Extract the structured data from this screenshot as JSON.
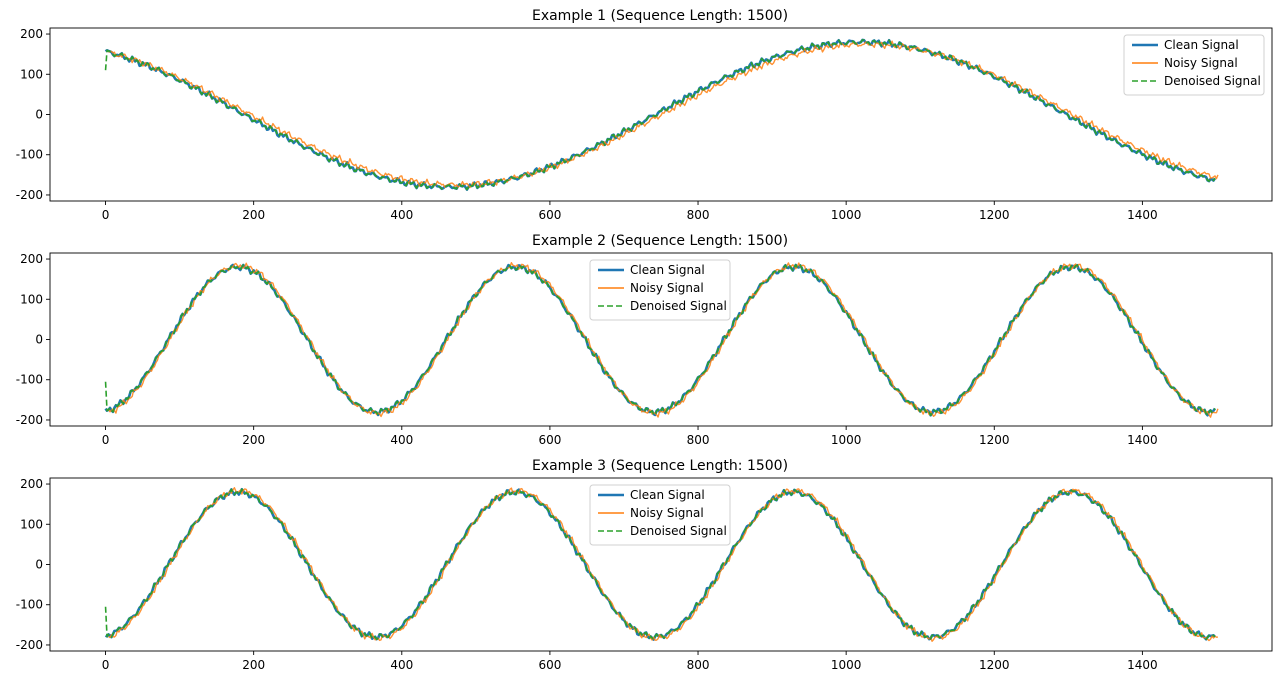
{
  "chart_data": [
    {
      "type": "line",
      "title": "Example 1 (Sequence Length: 1500)",
      "xlabel": "",
      "ylabel": "",
      "xlim": [
        -75,
        1575
      ],
      "ylim": [
        -215,
        215
      ],
      "xticks": [
        0,
        200,
        400,
        600,
        800,
        1000,
        1200,
        1400
      ],
      "yticks": [
        -200,
        -100,
        0,
        100,
        200
      ],
      "grid": false,
      "legend_position": "top-right",
      "signal": {
        "amplitude": 180,
        "period": 1110,
        "start_value": 157,
        "length": 1500
      },
      "series": [
        {
          "name": "Clean Signal",
          "color": "#1f77b4",
          "style": "solid"
        },
        {
          "name": "Noisy Signal",
          "color": "#ff7f0e",
          "style": "solid"
        },
        {
          "name": "Denoised Signal",
          "color": "#2ca02c",
          "style": "dashed",
          "initial_value": 110
        }
      ]
    },
    {
      "type": "line",
      "title": "Example 2 (Sequence Length: 1500)",
      "xlabel": "",
      "ylabel": "",
      "xlim": [
        -75,
        1575
      ],
      "ylim": [
        -215,
        215
      ],
      "xticks": [
        0,
        200,
        400,
        600,
        800,
        1000,
        1200,
        1400
      ],
      "yticks": [
        -200,
        -100,
        0,
        100,
        200
      ],
      "grid": false,
      "legend_position": "top-center",
      "signal": {
        "amplitude": 180,
        "period": 375,
        "start_value": -178,
        "length": 1500
      },
      "series": [
        {
          "name": "Clean Signal",
          "color": "#1f77b4",
          "style": "solid"
        },
        {
          "name": "Noisy Signal",
          "color": "#ff7f0e",
          "style": "solid"
        },
        {
          "name": "Denoised Signal",
          "color": "#2ca02c",
          "style": "dashed",
          "initial_value": -105
        }
      ]
    },
    {
      "type": "line",
      "title": "Example 3 (Sequence Length: 1500)",
      "xlabel": "",
      "ylabel": "",
      "xlim": [
        -75,
        1575
      ],
      "ylim": [
        -215,
        215
      ],
      "xticks": [
        0,
        200,
        400,
        600,
        800,
        1000,
        1200,
        1400
      ],
      "yticks": [
        -200,
        -100,
        0,
        100,
        200
      ],
      "grid": false,
      "legend_position": "top-center",
      "signal": {
        "amplitude": 180,
        "period": 375,
        "start_value": -178,
        "length": 1500
      },
      "series": [
        {
          "name": "Clean Signal",
          "color": "#1f77b4",
          "style": "solid"
        },
        {
          "name": "Noisy Signal",
          "color": "#ff7f0e",
          "style": "solid"
        },
        {
          "name": "Denoised Signal",
          "color": "#2ca02c",
          "style": "dashed",
          "initial_value": -105
        }
      ]
    }
  ]
}
